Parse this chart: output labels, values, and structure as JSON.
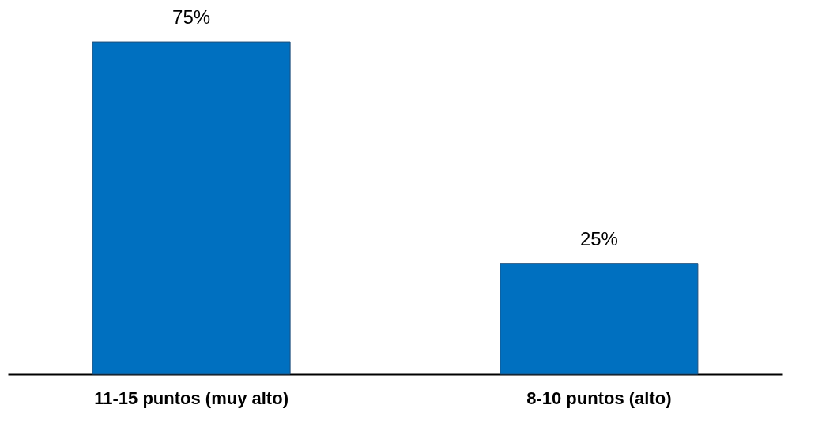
{
  "chart_data": {
    "type": "bar",
    "categories": [
      "11-15 puntos (muy alto)",
      "8-10 puntos (alto)"
    ],
    "values": [
      75,
      25
    ],
    "color": "#0070c0",
    "value_labels": [
      "75%",
      "25%"
    ],
    "grid": false
  }
}
